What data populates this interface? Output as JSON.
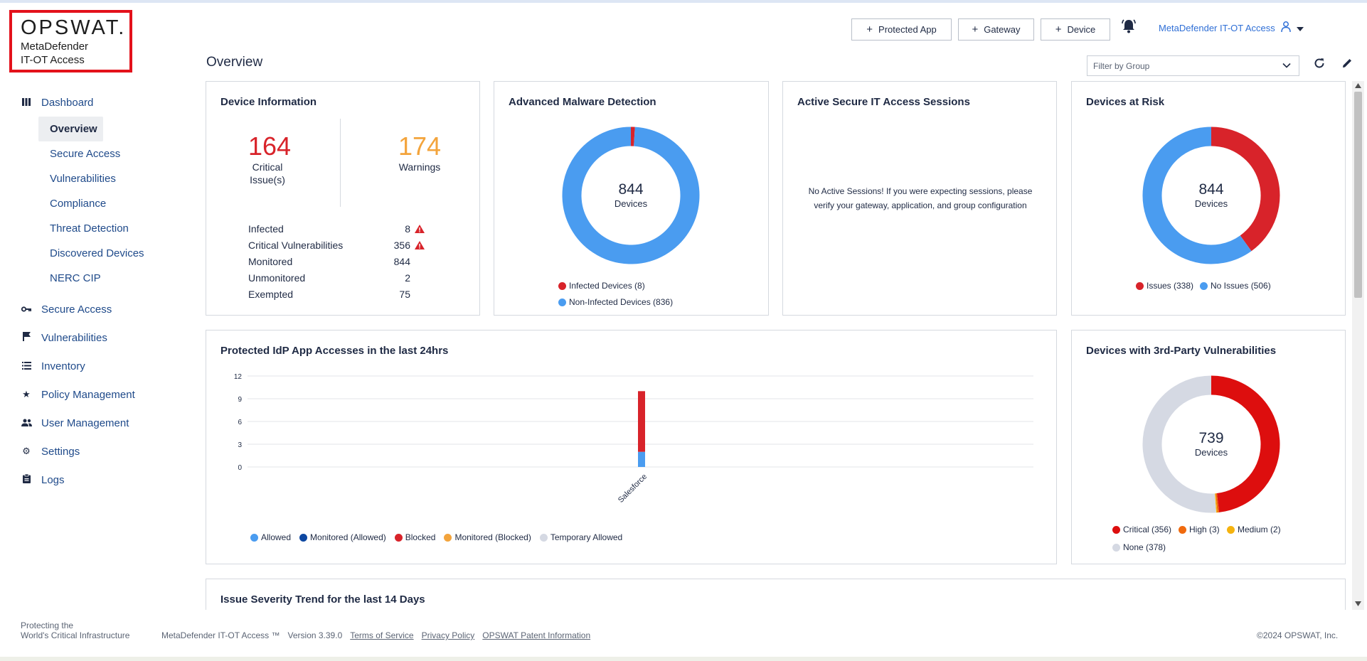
{
  "brand": {
    "logo": "OPSWAT.",
    "product_line1": "MetaDefender",
    "product_line2": "IT-OT Access"
  },
  "sidebar": {
    "items": [
      {
        "label": "Dashboard",
        "icon": "dashboard-icon"
      },
      {
        "label": "Secure Access",
        "icon": "key-icon"
      },
      {
        "label": "Vulnerabilities",
        "icon": "flag-icon"
      },
      {
        "label": "Inventory",
        "icon": "list-icon"
      },
      {
        "label": "Policy Management",
        "icon": "star-icon"
      },
      {
        "label": "User Management",
        "icon": "users-icon"
      },
      {
        "label": "Settings",
        "icon": "gear-icon"
      },
      {
        "label": "Logs",
        "icon": "clipboard-icon"
      }
    ],
    "dashboard_sub": [
      "Overview",
      "Secure Access",
      "Vulnerabilities",
      "Compliance",
      "Threat Detection",
      "Discovered Devices",
      "NERC CIP"
    ]
  },
  "header": {
    "buttons": [
      "Protected App",
      "Gateway",
      "Device"
    ],
    "user": "MetaDefender IT-OT Access",
    "page_title": "Overview",
    "filter_placeholder": "Filter by Group"
  },
  "device_info": {
    "title": "Device Information",
    "critical": "164",
    "critical_label_1": "Critical",
    "critical_label_2": "Issue(s)",
    "warnings": "174",
    "warnings_label": "Warnings",
    "rows": [
      {
        "label": "Infected",
        "value": "8",
        "alert": true
      },
      {
        "label": "Critical Vulnerabilities",
        "value": "356",
        "alert": true
      },
      {
        "label": "Monitored",
        "value": "844",
        "alert": false
      },
      {
        "label": "Unmonitored",
        "value": "2",
        "alert": false
      },
      {
        "label": "Exempted",
        "value": "75",
        "alert": false
      }
    ]
  },
  "malware": {
    "title": "Advanced Malware Detection",
    "total": "844",
    "unit": "Devices",
    "legend": [
      "Infected Devices (8)",
      "Non-Infected Devices (836)"
    ],
    "values": [
      8,
      836
    ],
    "colors": [
      "#d8232a",
      "#4a9cf0"
    ]
  },
  "sessions": {
    "title": "Active Secure IT Access Sessions",
    "message_1": "No Active Sessions! If you were expecting sessions, please",
    "message_2": "verify your gateway, application, and group configuration"
  },
  "risk": {
    "title": "Devices at Risk",
    "total": "844",
    "unit": "Devices",
    "legend": [
      "Issues (338)",
      "No Issues (506)"
    ],
    "values": [
      338,
      506
    ],
    "colors": [
      "#d8232a",
      "#4a9cf0"
    ]
  },
  "idp": {
    "title": "Protected IdP App Accesses in the last 24hrs",
    "legend": [
      "Allowed",
      "Monitored (Allowed)",
      "Blocked",
      "Monitored (Blocked)",
      "Temporary Allowed"
    ],
    "legend_colors": [
      "#4a9cf0",
      "#0d47a1",
      "#d8232a",
      "#f3a43c",
      "#d5d9e3"
    ]
  },
  "vuln3p": {
    "title": "Devices with 3rd-Party Vulnerabilities",
    "total": "739",
    "unit": "Devices",
    "legend": [
      "Critical (356)",
      "High (3)",
      "Medium (2)",
      "None (378)"
    ],
    "values": [
      356,
      3,
      2,
      378
    ],
    "colors": [
      "#dd0e0e",
      "#f06a0e",
      "#f5b30f",
      "#d5d9e3"
    ]
  },
  "trend": {
    "title": "Issue Severity Trend for the last 14 Days"
  },
  "footer": {
    "tag1": "Protecting the",
    "tag2": "World's Critical Infrastructure",
    "product": "MetaDefender IT-OT Access ™",
    "version": "Version 3.39.0",
    "tos": "Terms of Service",
    "privacy": "Privacy Policy",
    "patent": "OPSWAT Patent Information",
    "copyright": "©2024 OPSWAT, Inc."
  },
  "chart_data": {
    "type": "bar",
    "categories": [
      "Salesforce"
    ],
    "series": [
      {
        "name": "Allowed",
        "values": [
          2
        ]
      },
      {
        "name": "Monitored (Allowed)",
        "values": [
          0
        ]
      },
      {
        "name": "Blocked",
        "values": [
          8
        ]
      },
      {
        "name": "Monitored (Blocked)",
        "values": [
          0
        ]
      },
      {
        "name": "Temporary Allowed",
        "values": [
          0
        ]
      }
    ],
    "yticks": [
      "0",
      "3",
      "6",
      "9",
      "12"
    ],
    "ylim": [
      0,
      12
    ],
    "stacked": true
  }
}
